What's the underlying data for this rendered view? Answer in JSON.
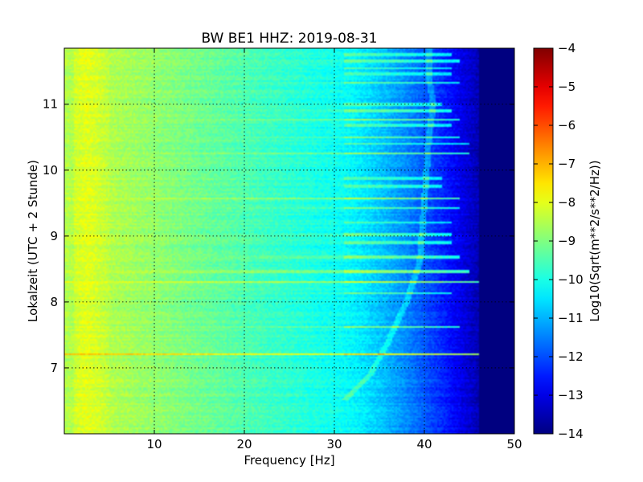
{
  "chart_data": {
    "type": "heatmap",
    "title": "BW BE1 HHZ: 2019-08-31",
    "xlabel": "Frequency [Hz]",
    "ylabel": "Lokalzeit (UTC + 2 Stunde)",
    "xlim": [
      0,
      50
    ],
    "ylim": [
      11.85,
      6.0
    ],
    "x_ticks": [
      10,
      20,
      30,
      40,
      50
    ],
    "y_ticks": [
      7,
      8,
      9,
      10,
      11
    ],
    "grid": true,
    "colormap": "jet",
    "colorbar": {
      "label": "Log10(Sqrt(m**2/s**2/Hz))",
      "range": [
        -14,
        -4
      ],
      "ticks": [
        -4,
        -5,
        -6,
        -7,
        -8,
        -9,
        -10,
        -11,
        -12,
        -13,
        -14
      ]
    },
    "features": {
      "rolloff_start_hz": 31,
      "rolloff_end_hz": 46,
      "floor_value": -14,
      "low_freq_peak_hz": 2.5,
      "low_freq_value": -8,
      "midband_value": -9.5,
      "wandering_line": [
        [
          31,
          6.5
        ],
        [
          34,
          6.9
        ],
        [
          36,
          7.4
        ],
        [
          38,
          8.0
        ],
        [
          39.5,
          8.6
        ],
        [
          40,
          9.5
        ],
        [
          40.5,
          10.5
        ],
        [
          41,
          11.0
        ],
        [
          40.5,
          11.4
        ],
        [
          40.5,
          11.85
        ]
      ],
      "bright_bands": [
        {
          "time": 7.21,
          "value": -7.2,
          "extent_hz": 46
        },
        {
          "time": 7.62,
          "value": -8.8,
          "extent_hz": 44
        },
        {
          "time": 8.13,
          "value": -9.0,
          "extent_hz": 43
        },
        {
          "time": 8.3,
          "value": -8.0,
          "extent_hz": 46
        },
        {
          "time": 8.46,
          "value": -8.4,
          "extent_hz": 45
        },
        {
          "time": 8.68,
          "value": -8.8,
          "extent_hz": 44
        },
        {
          "time": 8.9,
          "value": -9.2,
          "extent_hz": 43
        },
        {
          "time": 9.02,
          "value": -9.0,
          "extent_hz": 43
        },
        {
          "time": 9.2,
          "value": -9.2,
          "extent_hz": 43
        },
        {
          "time": 9.42,
          "value": -9.0,
          "extent_hz": 44
        },
        {
          "time": 9.57,
          "value": -8.4,
          "extent_hz": 44
        },
        {
          "time": 9.75,
          "value": -9.2,
          "extent_hz": 42
        },
        {
          "time": 9.88,
          "value": -9.4,
          "extent_hz": 42
        },
        {
          "time": 10.25,
          "value": -8.4,
          "extent_hz": 45
        },
        {
          "time": 10.4,
          "value": -9.0,
          "extent_hz": 45
        },
        {
          "time": 10.5,
          "value": -8.8,
          "extent_hz": 44
        },
        {
          "time": 10.68,
          "value": -9.2,
          "extent_hz": 43
        },
        {
          "time": 10.76,
          "value": -8.6,
          "extent_hz": 44
        },
        {
          "time": 10.9,
          "value": -9.0,
          "extent_hz": 43
        },
        {
          "time": 11.0,
          "value": -9.2,
          "extent_hz": 42
        },
        {
          "time": 11.32,
          "value": -9.0,
          "extent_hz": 44
        },
        {
          "time": 11.46,
          "value": -9.3,
          "extent_hz": 43
        },
        {
          "time": 11.55,
          "value": -9.4,
          "extent_hz": 43
        },
        {
          "time": 11.65,
          "value": -9.2,
          "extent_hz": 44
        },
        {
          "time": 11.75,
          "value": -9.4,
          "extent_hz": 43
        }
      ]
    }
  }
}
